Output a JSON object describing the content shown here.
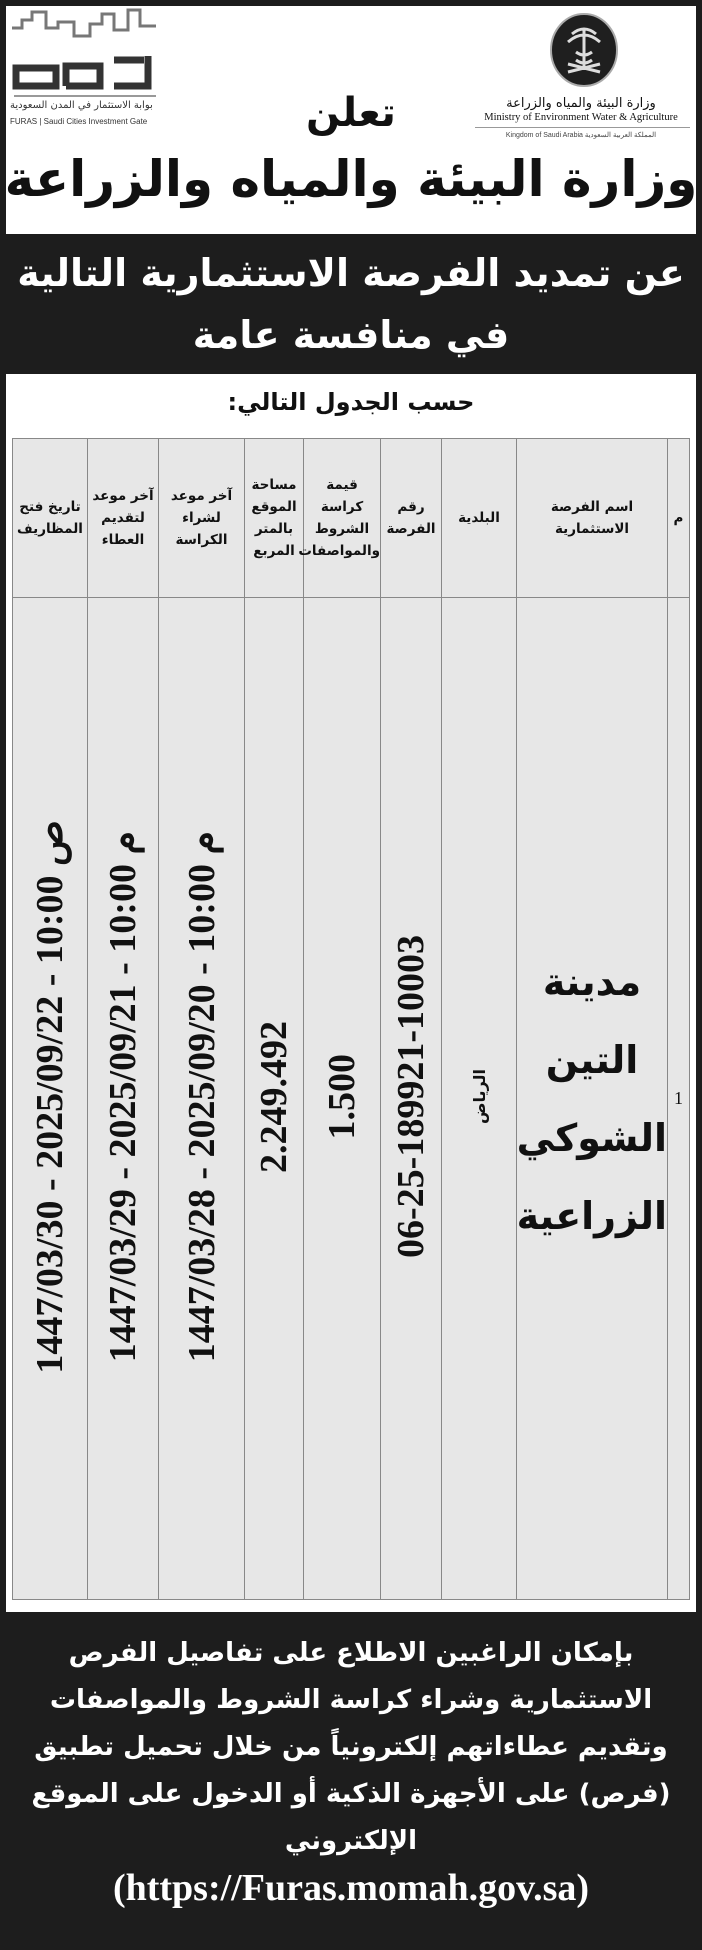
{
  "header": {
    "furas_logo_text": "فرص",
    "furas_tagline_ar": "بوابة الاستثمار في المدن السعودية",
    "furas_tagline_en": "FURAS | Saudi Cities Investment Gate",
    "ministry_name_ar": "وزارة البيئة والمياه والزراعة",
    "ministry_name_en": "Ministry of Environment Water & Agriculture",
    "kingdom_line": "Kingdom of Saudi Arabia   المملكة العربية السعودية",
    "announces": "تعلن",
    "ministry_title": "وزارة البيئة والمياه والزراعة"
  },
  "banner": {
    "line1": "عن تمديد الفرصة الاستثمارية التالية",
    "line2": "في منافسة عامة"
  },
  "per_table": "حسب الجدول التالي:",
  "table": {
    "headers": [
      "م",
      "اسم الفرصة الاستثمارية",
      "البلدية",
      "رقم الفرصة",
      "قيمة كراسة الشروط والمواصفات",
      "مساحة الموقع بالمتر المربع",
      "آخر موعد لشراء الكراسة",
      "آخر موعد لتقديم العطاء",
      "تاريخ فتح المظاريف"
    ],
    "rows": [
      {
        "index": "1",
        "name": "مدينة التين الشوكي الزراعية",
        "municipality": "الرياض",
        "number": "06-25-189921-10003",
        "booklet_price": "1.500",
        "area": "2.249.492",
        "purchase_deadline": "1447/03/28 - م 10:00 - 2025/09/20",
        "submission_deadline": "1447/03/29 - م 10:00 - 2025/09/21",
        "opening_date": "1447/03/30 - ص 10:00 - 2025/09/22"
      }
    ]
  },
  "footer": {
    "text": "بإمكان الراغبين الاطلاع على تفاصيل الفرص الاستثمارية وشراء كراسة الشروط والمواصفات وتقديم عطاءاتهم إلكترونياً من خلال تحميل تطبيق (فرص) على الأجهزة الذكية أو الدخول على الموقع الإلكتروني",
    "url": "(https://Furas.momah.gov.sa)"
  }
}
